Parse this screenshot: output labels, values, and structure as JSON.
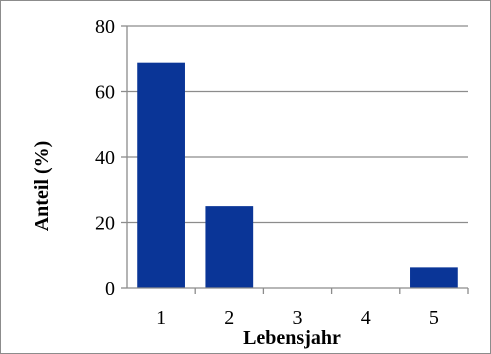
{
  "chart_data": {
    "type": "bar",
    "categories": [
      "1",
      "2",
      "3",
      "4",
      "5"
    ],
    "values": [
      68.8,
      25.0,
      0,
      0,
      6.3
    ],
    "title": "",
    "xlabel": "Lebensjahr",
    "ylabel": "Anteil (%)",
    "ylim": [
      0,
      80
    ],
    "yticks": [
      "0",
      "20",
      "40",
      "60",
      "80"
    ],
    "grid": true,
    "legend": "none",
    "bar_color": "#0a3597",
    "grid_color": "#8c8c8c"
  }
}
